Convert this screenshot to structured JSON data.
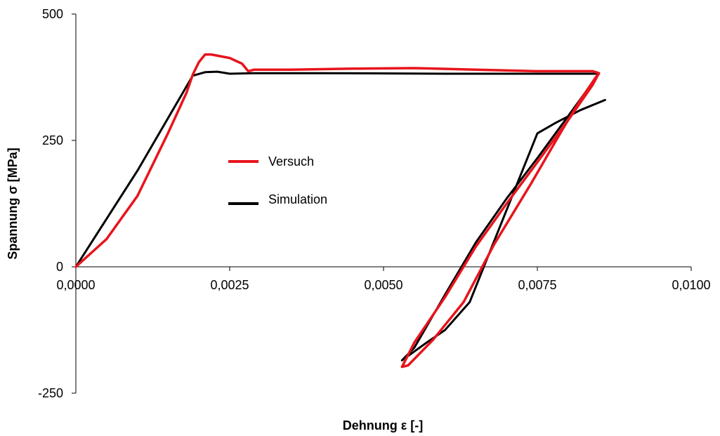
{
  "chart_data": {
    "type": "line",
    "xlabel": "Dehnung ε [-]",
    "ylabel": "Spannung σ [MPa]",
    "xlim": [
      0,
      0.01
    ],
    "ylim": [
      -250,
      500
    ],
    "x_ticks": [
      0,
      0.0025,
      0.005,
      0.0075,
      0.01
    ],
    "x_tick_labels": [
      "0,0000",
      "0,0025",
      "0,0050",
      "0,0075",
      "0,0100"
    ],
    "y_ticks": [
      500,
      250,
      0,
      -250
    ],
    "y_tick_labels": [
      "500",
      "250",
      "0",
      "-250"
    ],
    "grid": false,
    "legend_position": "center-left",
    "colors": {
      "Versuch": "#e8141c",
      "Simulation": "#000000"
    },
    "series": [
      {
        "name": "Versuch",
        "points": [
          [
            0.0,
            0
          ],
          [
            0.0005,
            55
          ],
          [
            0.001,
            140
          ],
          [
            0.0015,
            265
          ],
          [
            0.0018,
            345
          ],
          [
            0.0019,
            380
          ],
          [
            0.002,
            405
          ],
          [
            0.0021,
            420
          ],
          [
            0.0022,
            420
          ],
          [
            0.0025,
            413
          ],
          [
            0.0027,
            402
          ],
          [
            0.0028,
            387
          ],
          [
            0.0029,
            390
          ],
          [
            0.0035,
            390
          ],
          [
            0.0045,
            392
          ],
          [
            0.0055,
            393
          ],
          [
            0.0065,
            390
          ],
          [
            0.0075,
            387
          ],
          [
            0.0084,
            387
          ],
          [
            0.0085,
            383
          ],
          [
            0.0084,
            360
          ],
          [
            0.008,
            290
          ],
          [
            0.0075,
            207
          ],
          [
            0.007,
            125
          ],
          [
            0.0065,
            40
          ],
          [
            0.006,
            -60
          ],
          [
            0.0055,
            -150
          ],
          [
            0.0053,
            -198
          ],
          [
            0.0054,
            -195
          ],
          [
            0.0058,
            -145
          ],
          [
            0.0063,
            -70
          ],
          [
            0.0068,
            45
          ],
          [
            0.0074,
            165
          ],
          [
            0.0079,
            270
          ],
          [
            0.0082,
            330
          ],
          [
            0.00845,
            375
          ],
          [
            0.0085,
            382
          ]
        ]
      },
      {
        "name": "Simulation",
        "points": [
          [
            0.0,
            0
          ],
          [
            0.001,
            190
          ],
          [
            0.0019,
            378
          ],
          [
            0.0021,
            385
          ],
          [
            0.0023,
            386
          ],
          [
            0.0025,
            382
          ],
          [
            0.0029,
            383
          ],
          [
            0.004,
            383
          ],
          [
            0.006,
            382
          ],
          [
            0.0085,
            382
          ],
          [
            0.0085,
            382
          ],
          [
            0.008,
            298
          ],
          [
            0.0075,
            215
          ],
          [
            0.007,
            135
          ],
          [
            0.0065,
            48
          ],
          [
            0.006,
            -55
          ],
          [
            0.0055,
            -160
          ],
          [
            0.0053,
            -185
          ],
          [
            0.0057,
            -150
          ],
          [
            0.006,
            -125
          ],
          [
            0.0064,
            -70
          ],
          [
            0.0075,
            264
          ],
          [
            0.0078,
            285
          ],
          [
            0.0082,
            310
          ],
          [
            0.0086,
            330
          ]
        ]
      }
    ]
  }
}
